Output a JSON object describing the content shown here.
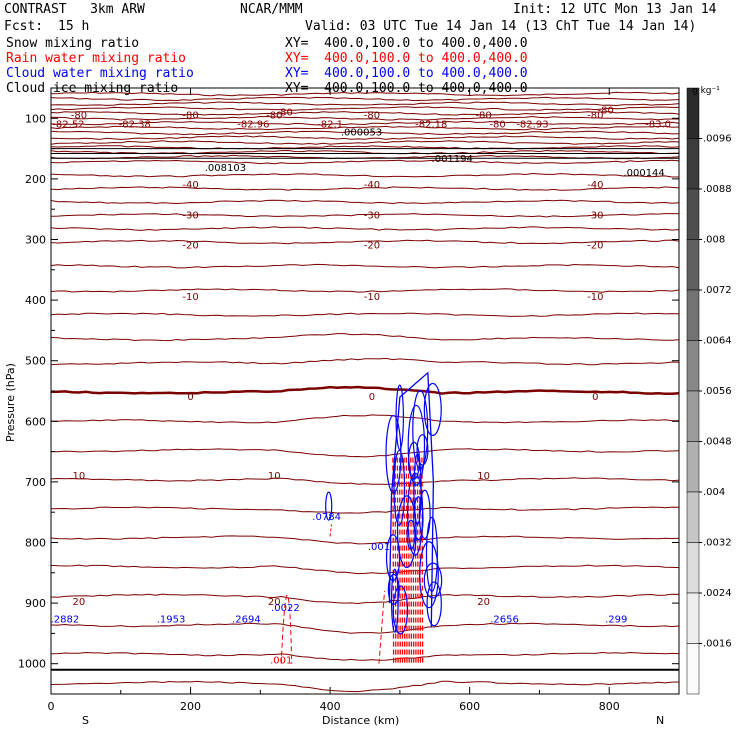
{
  "header": {
    "model": "CONTRAST   3km ARW",
    "org": "NCAR/MMM",
    "init": "Init: 12 UTC Mon 13 Jan 14",
    "fcst_label": "Fcst:",
    "fcst_value": "15 h",
    "valid": "Valid: 03 UTC Tue 14 Jan 14 (13 ChT Tue 14 Jan 14)"
  },
  "fields": [
    {
      "name": "Snow mixing ratio",
      "xy": "",
      "color": "#000000"
    },
    {
      "name": "Rain water mixing ratio",
      "xy": "XY=  400.0,100.0 to 400.0,400.0",
      "color": "#ff0000"
    },
    {
      "name": "Cloud water mixing ratio",
      "xy": "XY=  400.0,100.0 to 400.0,400.0",
      "color": "#0000ff"
    },
    {
      "name": "Cloud ice mixing ratio",
      "xy": "XY=  400.0,100.0 to 400.0,400.0",
      "color": "#000000"
    }
  ],
  "snow_xy": "XY=  400.0,100.0 to 400.0,400.0",
  "chart_data": {
    "type": "contour",
    "xlabel": "Distance (km)",
    "ylabel": "Pressure (hPa)",
    "x_ticks": [
      "0",
      "200",
      "400",
      "600",
      "800"
    ],
    "x_tick_values": [
      0,
      200,
      400,
      600,
      800
    ],
    "xlim": [
      0,
      900
    ],
    "y_ticks": [
      "100",
      "200",
      "300",
      "400",
      "500",
      "600",
      "700",
      "800",
      "900",
      "1000"
    ],
    "y_tick_values": [
      100,
      200,
      300,
      400,
      500,
      600,
      700,
      800,
      900,
      1000
    ],
    "ylim": [
      1050,
      50
    ],
    "left_end": "S",
    "right_end": "N",
    "colorbar": {
      "unit": "g kg⁻¹",
      "labels": [
        ".0096",
        ".0088",
        ".008",
        ".0072",
        ".0064",
        ".0056",
        ".0048",
        ".004",
        ".0032",
        ".0024",
        ".0016"
      ],
      "colors": [
        "#2b2b2b",
        "#3c3c3c",
        "#4e4e4e",
        "#606060",
        "#737373",
        "#878787",
        "#9b9b9b",
        "#b0b0b0",
        "#c6c6c6",
        "#dcdcdc",
        "#eeeeee",
        "#fafafa"
      ]
    },
    "temperature_isotherms_c": [
      {
        "label": "-80",
        "p": 95
      },
      {
        "label": "-40",
        "p": 210
      },
      {
        "label": "-30",
        "p": 260
      },
      {
        "label": "-20",
        "p": 310
      },
      {
        "label": "-10",
        "p": 395
      },
      {
        "label": "0",
        "p": 560
      },
      {
        "label": "10",
        "p": 690
      },
      {
        "label": "20",
        "p": 898
      }
    ],
    "annotations": [
      {
        "text": "-82.52",
        "x": 25,
        "p": 115,
        "color": "#8b0000"
      },
      {
        "text": "-82.38",
        "x": 120,
        "p": 115,
        "color": "#8b0000"
      },
      {
        "text": "-82.96",
        "x": 290,
        "p": 115,
        "color": "#8b0000"
      },
      {
        "text": "-82.1",
        "x": 400,
        "p": 115,
        "color": "#8b0000"
      },
      {
        "text": "-82.18",
        "x": 545,
        "p": 115,
        "color": "#8b0000"
      },
      {
        "text": "-82.93",
        "x": 690,
        "p": 115,
        "color": "#8b0000"
      },
      {
        "text": "-83.0",
        "x": 870,
        "p": 115,
        "color": "#8b0000"
      },
      {
        "text": "-80",
        "x": 335,
        "p": 95,
        "color": "#8b0000"
      },
      {
        "text": "-80",
        "x": 640,
        "p": 115,
        "color": "#8b0000"
      },
      {
        "text": "-80",
        "x": 795,
        "p": 92,
        "color": "#8b0000"
      },
      {
        "text": ".000053",
        "x": 445,
        "p": 128,
        "color": "#000000"
      },
      {
        "text": ".008103",
        "x": 250,
        "p": 187,
        "color": "#000000"
      },
      {
        "text": ".001194",
        "x": 575,
        "p": 172,
        "color": "#000000"
      },
      {
        "text": ".000144",
        "x": 850,
        "p": 195,
        "color": "#000000"
      },
      {
        "text": ".0784",
        "x": 395,
        "p": 763,
        "color": "#0000ff"
      },
      {
        "text": ".0022",
        "x": 336,
        "p": 913,
        "color": "#0000ff"
      },
      {
        "text": ".2882",
        "x": 20,
        "p": 932,
        "color": "#0000ff"
      },
      {
        "text": ".1953",
        "x": 172,
        "p": 932,
        "color": "#0000ff"
      },
      {
        "text": ".2694",
        "x": 280,
        "p": 932,
        "color": "#0000ff"
      },
      {
        "text": ".2656",
        "x": 650,
        "p": 932,
        "color": "#0000ff"
      },
      {
        "text": ".299",
        "x": 810,
        "p": 932,
        "color": "#0000ff"
      },
      {
        "text": ".001",
        "x": 330,
        "p": 1000,
        "color": "#ff0000"
      },
      {
        "text": ".001",
        "x": 470,
        "p": 812,
        "color": "#0000ff"
      }
    ]
  }
}
